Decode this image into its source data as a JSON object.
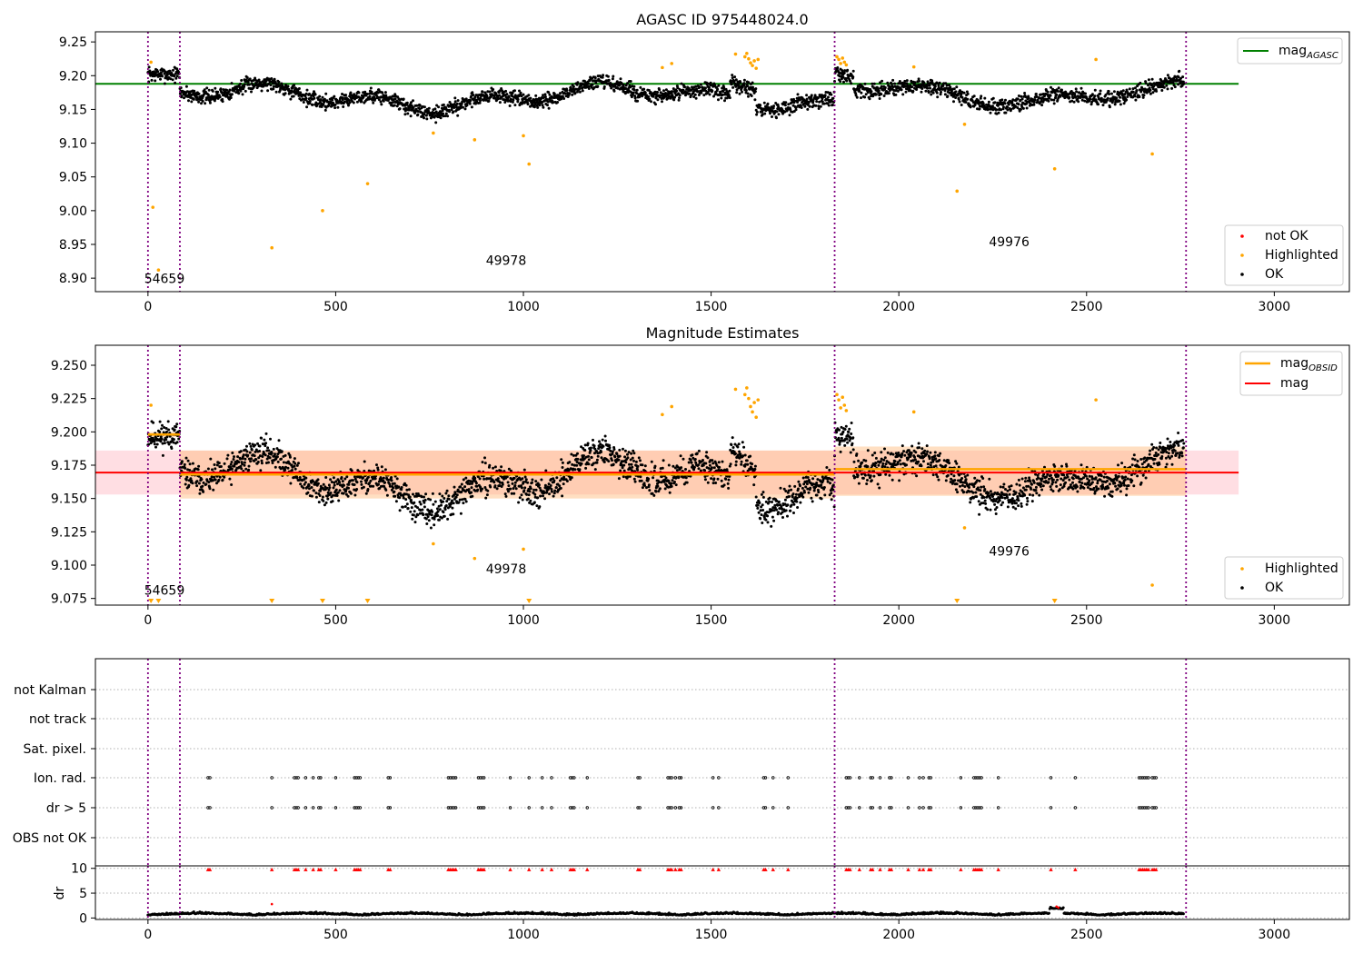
{
  "chart_data": [
    {
      "id": "agasc_panel",
      "type": "scatter",
      "title": "AGASC ID 975448024.0",
      "xlim": [
        -140,
        3200
      ],
      "ylim": [
        8.88,
        9.265
      ],
      "xticks": [
        0,
        500,
        1000,
        1500,
        2000,
        2500,
        3000
      ],
      "xtick_labels": [
        "0",
        "500",
        "1000",
        "1500",
        "2000",
        "2500",
        "3000"
      ],
      "yticks": [
        8.9,
        8.95,
        9.0,
        9.05,
        9.1,
        9.15,
        9.2,
        9.25
      ],
      "ytick_labels": [
        "8.90",
        "8.95",
        "9.00",
        "9.05",
        "9.10",
        "9.15",
        "9.20",
        "9.25"
      ],
      "reference_line": {
        "name": "mag_AGASC",
        "label_main": "mag",
        "label_sub": "AGASC",
        "y": 9.188,
        "x": [
          -140,
          2905
        ],
        "color": "#008000"
      },
      "obs_boundaries": [
        0,
        85,
        1829,
        2765
      ],
      "obs_annotations": [
        {
          "text": "54659",
          "x": -10,
          "y": 8.893
        },
        {
          "text": "49978",
          "x": 900,
          "y": 8.92
        },
        {
          "text": "49976",
          "x": 2240,
          "y": 8.947
        }
      ],
      "legend": {
        "location": "lower-right",
        "entries": [
          {
            "label": "not OK",
            "color": "#ff0000"
          },
          {
            "label": "Highlighted",
            "color": "#ffa500"
          },
          {
            "label": "OK",
            "color": "#000000"
          }
        ]
      },
      "highlighted_points": {
        "x": [
          8,
          13,
          28,
          330,
          465,
          585,
          760,
          870,
          1000,
          1015,
          1370,
          1395,
          1565,
          1590,
          1595,
          1600,
          1605,
          1610,
          1615,
          1620,
          1625,
          1835,
          1840,
          1845,
          1850,
          1855,
          1860,
          2040,
          2155,
          2175,
          2415,
          2525,
          2675
        ],
        "y": [
          9.22,
          9.005,
          8.912,
          8.945,
          9.0,
          9.04,
          9.115,
          9.105,
          9.111,
          9.069,
          9.212,
          9.218,
          9.232,
          9.228,
          9.233,
          9.225,
          9.219,
          9.215,
          9.222,
          9.211,
          9.224,
          9.228,
          9.224,
          9.218,
          9.226,
          9.22,
          9.216,
          9.213,
          9.029,
          9.128,
          9.062,
          9.224,
          9.084
        ]
      },
      "ok_points": {
        "description_n": 2760
      }
    },
    {
      "id": "estimates_panel",
      "type": "scatter",
      "title": "Magnitude Estimates",
      "xlim": [
        -140,
        3200
      ],
      "ylim": [
        9.07,
        9.265
      ],
      "xticks": [
        0,
        500,
        1000,
        1500,
        2000,
        2500,
        3000
      ],
      "xtick_labels": [
        "0",
        "500",
        "1000",
        "1500",
        "2000",
        "2500",
        "3000"
      ],
      "yticks": [
        9.075,
        9.1,
        9.125,
        9.15,
        9.175,
        9.2,
        9.225,
        9.25
      ],
      "ytick_labels": [
        "9.075",
        "9.100",
        "9.125",
        "9.150",
        "9.175",
        "9.200",
        "9.225",
        "9.250"
      ],
      "mag_line": {
        "name": "mag",
        "y": 9.1695,
        "band": [
          9.153,
          9.186
        ],
        "x": [
          -140,
          2905
        ],
        "color": "#ff0000",
        "band_color": "#ffd6dc"
      },
      "obsid_segments": [
        {
          "x0": 0,
          "x1": 85,
          "y": 9.198,
          "band": [
            9.196,
            9.2
          ]
        },
        {
          "x0": 85,
          "x1": 1829,
          "y": 9.168,
          "band": [
            9.15,
            9.186
          ]
        },
        {
          "x0": 1829,
          "x1": 2765,
          "y": 9.172,
          "band": [
            9.152,
            9.189
          ]
        }
      ],
      "obsid_color": "#ffa500",
      "obs_boundaries": [
        0,
        85,
        1829,
        2765
      ],
      "obs_annotations": [
        {
          "text": "54659",
          "x": -10,
          "y": 9.078
        },
        {
          "text": "49978",
          "x": 900,
          "y": 9.094
        },
        {
          "text": "49976",
          "x": 2240,
          "y": 9.107
        }
      ],
      "out_of_range_markers_x": [
        8,
        28,
        330,
        465,
        585,
        1015,
        2155,
        2415
      ],
      "legend_lines": [
        {
          "label_main": "mag",
          "label_sub": "OBSID",
          "color": "#ffa500"
        },
        {
          "label_main": "mag",
          "label_sub": "",
          "color": "#ff0000"
        }
      ],
      "legend_points": [
        {
          "label": "Highlighted",
          "color": "#ffa500"
        },
        {
          "label": "OK",
          "color": "#000000"
        }
      ],
      "highlighted_points": {
        "x": [
          8,
          760,
          870,
          1000,
          1370,
          1395,
          1565,
          1590,
          1595,
          1600,
          1605,
          1610,
          1615,
          1620,
          1625,
          1835,
          1840,
          1845,
          1850,
          1855,
          1860,
          2040,
          2175,
          2525,
          2675
        ],
        "y": [
          9.22,
          9.116,
          9.105,
          9.112,
          9.213,
          9.219,
          9.232,
          9.228,
          9.233,
          9.225,
          9.219,
          9.215,
          9.222,
          9.211,
          9.224,
          9.228,
          9.224,
          9.218,
          9.226,
          9.22,
          9.216,
          9.215,
          9.128,
          9.224,
          9.085
        ]
      }
    },
    {
      "id": "flags_panel",
      "type": "scatter",
      "xlim": [
        -140,
        3200
      ],
      "categories": [
        "not Kalman",
        "not track",
        "Sat. pixel.",
        "Ion. rad.",
        "dr > 5",
        "OBS not OK"
      ],
      "flag_x": [
        160,
        165,
        330,
        390,
        395,
        400,
        420,
        440,
        455,
        460,
        500,
        550,
        555,
        560,
        565,
        640,
        645,
        800,
        805,
        810,
        815,
        820,
        880,
        885,
        890,
        895,
        965,
        1015,
        1050,
        1075,
        1125,
        1130,
        1135,
        1170,
        1305,
        1310,
        1385,
        1390,
        1395,
        1405,
        1415,
        1420,
        1505,
        1520,
        1640,
        1645,
        1665,
        1705,
        1860,
        1865,
        1870,
        1895,
        1925,
        1930,
        1950,
        1975,
        1980,
        2025,
        2055,
        2065,
        2080,
        2085,
        2165,
        2200,
        2205,
        2210,
        2215,
        2220,
        2265,
        2405,
        2470,
        2640,
        2645,
        2650,
        2655,
        2660,
        2665,
        2675,
        2680,
        2685
      ],
      "flag_rows": [
        "Ion. rad.",
        "dr > 5"
      ],
      "obs_boundaries": [
        0,
        85,
        1829,
        2765
      ]
    },
    {
      "id": "dr_panel",
      "type": "scatter",
      "xlim": [
        -140,
        3200
      ],
      "ylim": [
        -0.3,
        10.5
      ],
      "yticks": [
        0,
        5,
        10
      ],
      "ytick_labels": [
        "0",
        "5",
        "10"
      ],
      "xticks": [
        0,
        500,
        1000,
        1500,
        2000,
        2500,
        3000
      ],
      "xtick_labels": [
        "0",
        "500",
        "1000",
        "1500",
        "2000",
        "2500",
        "3000"
      ],
      "ylabel": "dr",
      "red_marker_y": 9.8,
      "outliers": {
        "x": [
          330,
          2420,
          2425
        ],
        "y": [
          2.8,
          2.3,
          2.1
        ]
      },
      "obs_boundaries": [
        0,
        85,
        1829,
        2765
      ]
    }
  ]
}
